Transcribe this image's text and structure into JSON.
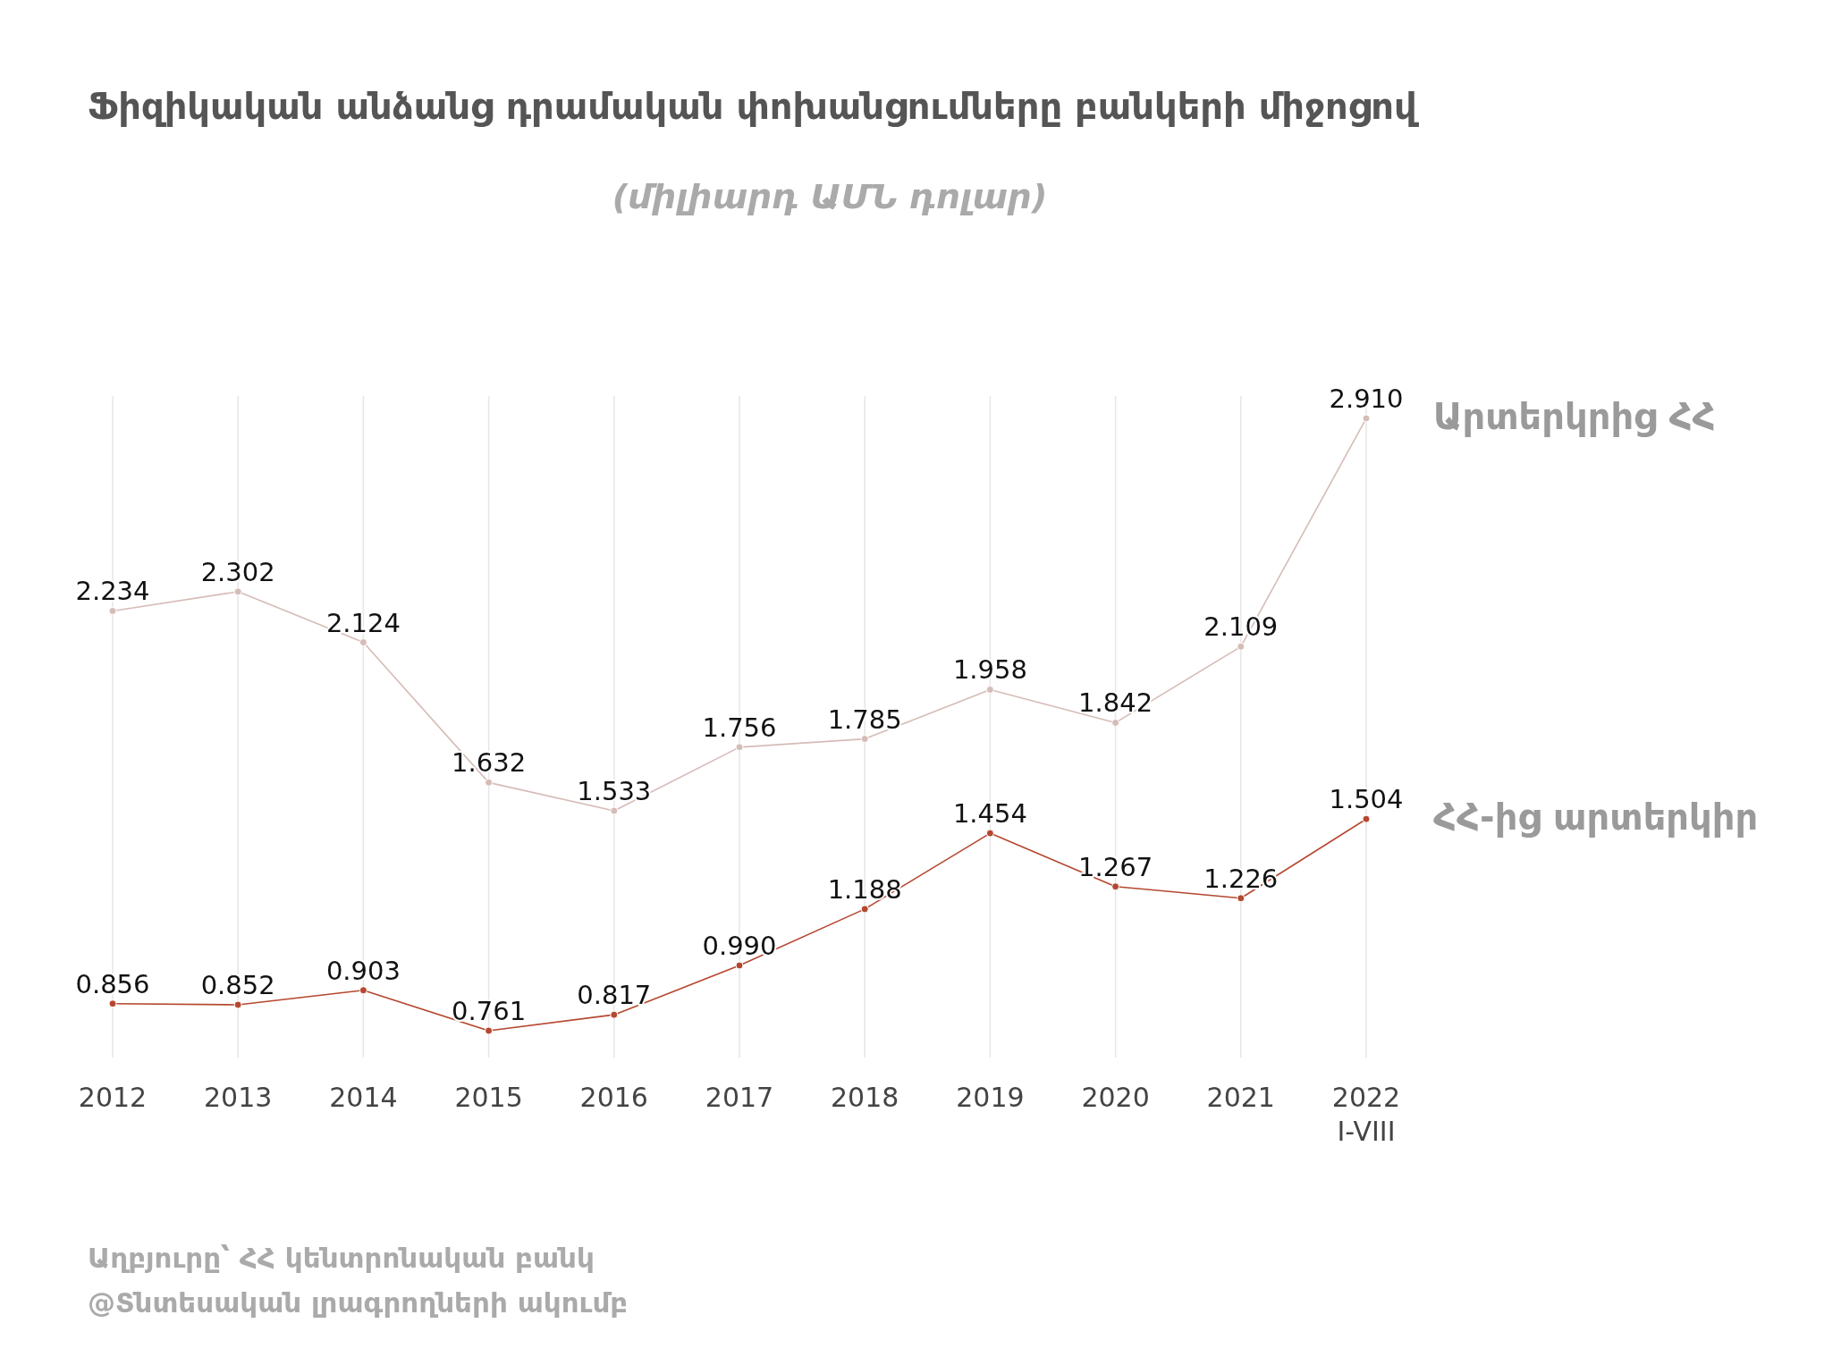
{
  "chart_data": {
    "type": "line",
    "title": "Ֆիզիկական անձանց դրամական փոխանցումները բանկերի միջոցով",
    "subtitle": "(միլիարդ ԱՄՆ դոլար)",
    "categories": [
      "2012",
      "2013",
      "2014",
      "2015",
      "2016",
      "2017",
      "2018",
      "2019",
      "2020",
      "2021",
      "2022\nI-VIII"
    ],
    "series": [
      {
        "name": "Արտերկրից ՀՀ",
        "color": "#d5bcb7",
        "values": [
          2.234,
          2.302,
          2.124,
          1.632,
          1.533,
          1.756,
          1.785,
          1.958,
          1.842,
          2.109,
          2.91
        ],
        "value_labels": [
          "2.234",
          "2.302",
          "2.124",
          "1.632",
          "1.533",
          "1.756",
          "1.785",
          "1.958",
          "1.842",
          "2.109",
          "2.910"
        ]
      },
      {
        "name": "ՀՀ-ից արտերկիր",
        "color": "#b5472f",
        "values": [
          0.856,
          0.852,
          0.903,
          0.761,
          0.817,
          0.99,
          1.188,
          1.454,
          1.267,
          1.226,
          1.504
        ],
        "value_labels": [
          "0.856",
          "0.852",
          "0.903",
          "0.761",
          "0.817",
          "0.990",
          "1.188",
          "1.454",
          "1.267",
          "1.226",
          "1.504"
        ]
      }
    ],
    "grid": "x",
    "marker": "circle",
    "line_style": "solid",
    "annotations": [
      "Աղբյուրը՝ ՀՀ կենտրոնական բանկ",
      "@Տնտեսական լրագրողների ակումբ"
    ]
  }
}
